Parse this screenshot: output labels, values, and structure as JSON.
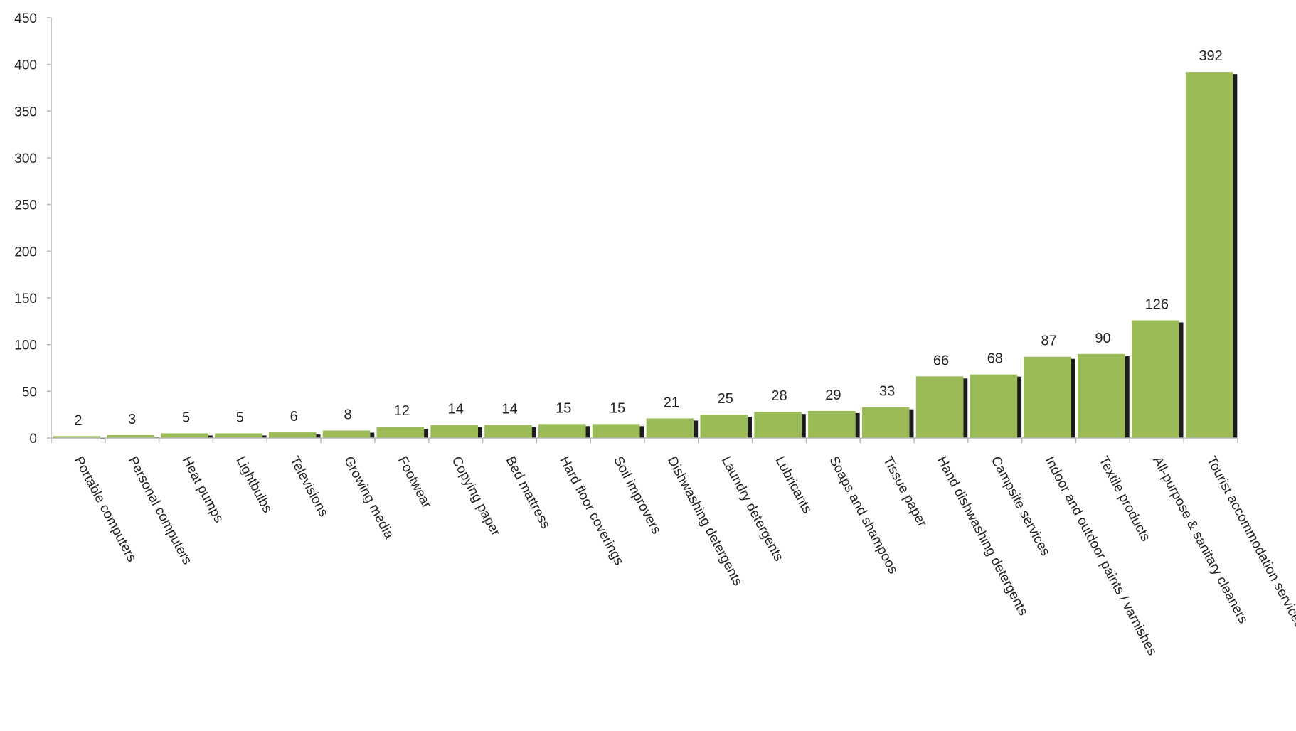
{
  "chart_data": {
    "type": "bar",
    "title": "",
    "xlabel": "",
    "ylabel": "",
    "ylim": [
      0,
      450
    ],
    "yticks": [
      0,
      50,
      100,
      150,
      200,
      250,
      300,
      350,
      400,
      450
    ],
    "grid": false,
    "legend": "none",
    "categories": [
      "Portable computers",
      "Personal computers",
      "Heat pumps",
      "Lightbulbs",
      "Televisions",
      "Growing media",
      "Footwear",
      "Copying paper",
      "Bed mattress",
      "Hard floor coverings",
      "Soil improvers",
      "Dishwashing detergents",
      "Laundry detergents",
      "Lubricants",
      "Soaps and shampoos",
      "Tissue paper",
      "Hand dishwashing detergents",
      "Campsite services",
      "Indoor and outdoor paints / varnishes",
      "Textile products",
      "All-purpose & sanitary cleaners",
      "Tourist accommodation services"
    ],
    "values": [
      2,
      3,
      5,
      5,
      6,
      8,
      12,
      14,
      14,
      15,
      15,
      21,
      25,
      28,
      29,
      33,
      66,
      68,
      87,
      90,
      126,
      392
    ],
    "colors": {
      "bar_fill": "#9bbb59",
      "bar_shadow": "#1c1c1c",
      "axis": "#b5b5b5",
      "text": "#222222"
    }
  }
}
